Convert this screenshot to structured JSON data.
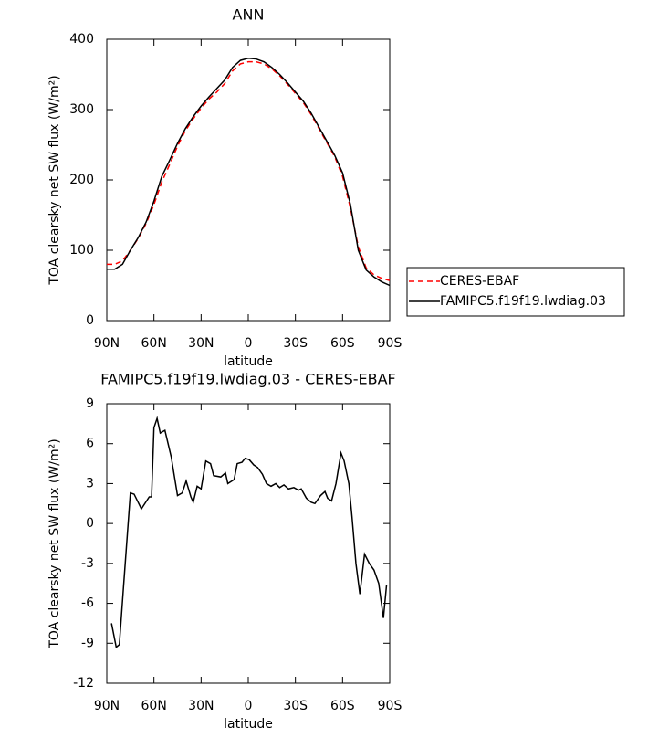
{
  "chart_data": [
    {
      "type": "line",
      "title": "ANN",
      "x_label": "latitude",
      "y_label": "TOA clearsky net SW flux (W/m²)",
      "xlim": [
        90,
        -90
      ],
      "xticks": [
        {
          "value": 90,
          "label": "90N"
        },
        {
          "value": 60,
          "label": "60N"
        },
        {
          "value": 30,
          "label": "30N"
        },
        0,
        {
          "value": -30,
          "label": "30S"
        },
        {
          "value": -60,
          "label": "60S"
        },
        {
          "value": -90,
          "label": "90S"
        }
      ],
      "ylim": [
        0,
        400
      ],
      "yticks": [
        0,
        100,
        200,
        300,
        400
      ],
      "legend": "right",
      "x": [
        90,
        85,
        80,
        75,
        70,
        65,
        60,
        55,
        50,
        45,
        40,
        35,
        30,
        25,
        20,
        15,
        10,
        5,
        0,
        -5,
        -10,
        -15,
        -20,
        -25,
        -30,
        -35,
        -40,
        -45,
        -50,
        -55,
        -60,
        -65,
        -70,
        -75,
        -80,
        -85,
        -90
      ],
      "series": [
        {
          "name": "CERES-EBAF",
          "color": "#ff0000",
          "line_style": "dashed",
          "values": [
            80,
            80,
            85,
            100,
            117,
            138,
            165,
            197,
            222,
            248,
            270,
            287,
            302,
            315,
            325,
            337,
            355,
            365,
            368,
            368,
            365,
            358,
            348,
            336,
            323,
            310,
            293,
            273,
            253,
            233,
            205,
            160,
            105,
            75,
            65,
            60,
            57
          ]
        },
        {
          "name": "FAMIPC5.f19f19.lwdiag.03",
          "color": "#000000",
          "line_style": "solid",
          "values": [
            73,
            73,
            80,
            100,
            118,
            140,
            170,
            205,
            228,
            252,
            273,
            290,
            305,
            318,
            330,
            342,
            360,
            370,
            373,
            372,
            368,
            360,
            350,
            338,
            325,
            312,
            295,
            275,
            255,
            235,
            210,
            165,
            100,
            72,
            62,
            55,
            50
          ]
        }
      ]
    },
    {
      "type": "line",
      "title": "FAMIPC5.f19f19.lwdiag.03 - CERES-EBAF",
      "x_label": "latitude",
      "y_label": "TOA clearsky net SW flux (W/m²)",
      "xlim": [
        90,
        -90
      ],
      "xticks": [
        {
          "value": 90,
          "label": "90N"
        },
        {
          "value": 60,
          "label": "60N"
        },
        {
          "value": 30,
          "label": "30N"
        },
        0,
        {
          "value": -30,
          "label": "30S"
        },
        {
          "value": -60,
          "label": "60S"
        },
        {
          "value": -90,
          "label": "90S"
        }
      ],
      "ylim": [
        -12,
        9
      ],
      "yticks": [
        -12,
        -9,
        -6,
        -3,
        0,
        3,
        6,
        9
      ],
      "x": [
        87,
        84,
        82,
        79.5,
        75,
        72.6,
        68,
        63,
        61.5,
        60,
        58,
        56,
        53,
        49,
        45,
        42,
        39.5,
        36.5,
        35,
        32.5,
        30,
        27,
        24,
        22,
        17.5,
        14.5,
        13,
        9,
        7,
        4,
        2,
        -0.6,
        -3.5,
        -6,
        -9,
        -11.6,
        -14.5,
        -17.5,
        -20,
        -22.7,
        -25.6,
        -29,
        -32,
        -33.7,
        -37,
        -40,
        -42.4,
        -46,
        -48.8,
        -50.5,
        -53,
        -55.8,
        -59,
        -61,
        -64,
        -66,
        -68.5,
        -71,
        -74,
        -77,
        -80,
        -83,
        -86,
        -88
      ],
      "series": [
        {
          "color": "#000000",
          "line_style": "solid",
          "values": [
            -7.5,
            -9.3,
            -9.1,
            -5,
            2.3,
            2.2,
            1.1,
            2.0,
            2.0,
            7.2,
            7.9,
            6.8,
            7.0,
            5.0,
            2.1,
            2.3,
            3.2,
            2.0,
            1.6,
            2.8,
            2.6,
            4.7,
            4.5,
            3.6,
            3.5,
            3.8,
            3.0,
            3.3,
            4.5,
            4.6,
            4.9,
            4.8,
            4.4,
            4.2,
            3.7,
            3.0,
            2.8,
            3.0,
            2.7,
            2.9,
            2.6,
            2.7,
            2.5,
            2.6,
            1.9,
            1.6,
            1.5,
            2.1,
            2.4,
            1.9,
            1.7,
            3.0,
            5.3,
            4.7,
            3.0,
            0.5,
            -3,
            -5.3,
            -2.3,
            -3.0,
            -3.5,
            -4.5,
            -7.1,
            -4.6
          ]
        }
      ]
    }
  ]
}
